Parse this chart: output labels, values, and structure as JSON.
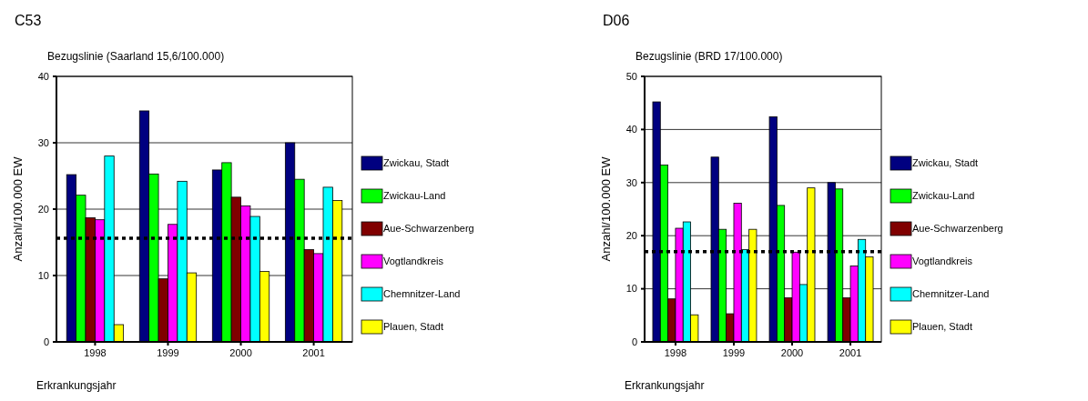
{
  "chart_data": [
    {
      "type": "bar",
      "title": "C53",
      "subtitle": "Bezugslinie (Saarland 15,6/100.000)",
      "xlabel": "Erkrankungsjahr",
      "ylabel": "Anzahl/100.000 EW",
      "categories": [
        "1998",
        "1999",
        "2000",
        "2001"
      ],
      "ylim": [
        0,
        40
      ],
      "yticks": [
        0,
        10,
        20,
        30,
        40
      ],
      "grid": "y",
      "legend": "right",
      "series": [
        {
          "name": "Zwickau, Stadt",
          "color": "#000080",
          "values": [
            25.2,
            34.8,
            25.9,
            30.0
          ]
        },
        {
          "name": "Zwickau-Land",
          "color": "#00ff00",
          "values": [
            22.1,
            25.3,
            27.0,
            24.5
          ]
        },
        {
          "name": "Aue-Schwarzenberg",
          "color": "#800000",
          "values": [
            18.7,
            9.5,
            21.8,
            13.9
          ]
        },
        {
          "name": "Vogtlandkreis",
          "color": "#ff00ff",
          "values": [
            18.4,
            17.7,
            20.5,
            13.3
          ]
        },
        {
          "name": "Chemnitzer-Land",
          "color": "#00ffff",
          "values": [
            28.0,
            24.2,
            18.9,
            23.3
          ]
        },
        {
          "name": "Plauen, Stadt",
          "color": "#ffff00",
          "values": [
            2.6,
            10.4,
            10.6,
            21.3
          ]
        }
      ],
      "ref_lines": [
        {
          "axis": "y",
          "value": 15.6,
          "color": "#000000",
          "line_style": "dotted"
        }
      ]
    },
    {
      "type": "bar",
      "title": "D06",
      "subtitle": "Bezugslinie (BRD 17/100.000)",
      "xlabel": "Erkrankungsjahr",
      "ylabel": "Anzahl/100.000 EW",
      "categories": [
        "1998",
        "1999",
        "2000",
        "2001"
      ],
      "ylim": [
        0,
        50
      ],
      "yticks": [
        0,
        10,
        20,
        30,
        40,
        50
      ],
      "grid": "y",
      "legend": "right",
      "series": [
        {
          "name": "Zwickau, Stadt",
          "color": "#000080",
          "values": [
            45.2,
            34.8,
            42.4,
            30.0
          ]
        },
        {
          "name": "Zwickau-Land",
          "color": "#00ff00",
          "values": [
            33.3,
            21.2,
            25.7,
            28.8
          ]
        },
        {
          "name": "Aue-Schwarzenberg",
          "color": "#800000",
          "values": [
            8.1,
            5.3,
            8.3,
            8.3
          ]
        },
        {
          "name": "Vogtlandkreis",
          "color": "#ff00ff",
          "values": [
            21.4,
            26.1,
            16.9,
            14.3
          ]
        },
        {
          "name": "Chemnitzer-Land",
          "color": "#00ffff",
          "values": [
            22.6,
            17.4,
            10.8,
            19.3
          ]
        },
        {
          "name": "Plauen, Stadt",
          "color": "#ffff00",
          "values": [
            5.1,
            21.2,
            29.0,
            16.0
          ]
        }
      ],
      "ref_lines": [
        {
          "axis": "y",
          "value": 17,
          "color": "#000000",
          "line_style": "dotted"
        }
      ]
    }
  ]
}
